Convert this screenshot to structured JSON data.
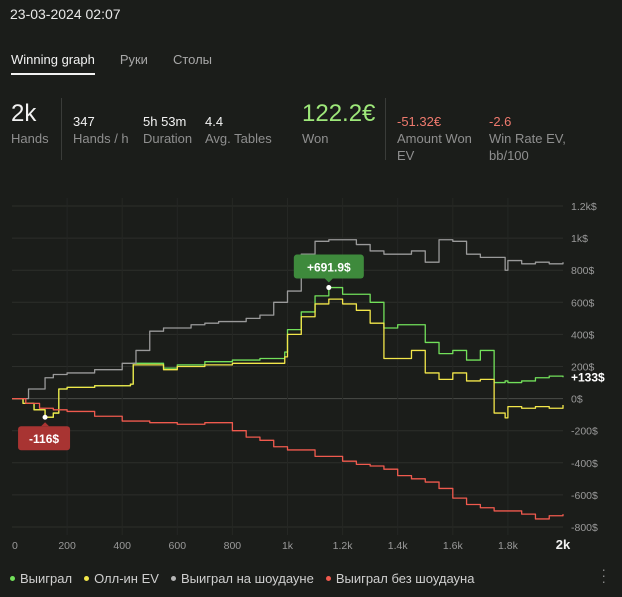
{
  "header": {
    "datetime": "23-03-2024 02:07"
  },
  "tabs": [
    {
      "label": "Winning graph",
      "active": true
    },
    {
      "label": "Руки",
      "active": false
    },
    {
      "label": "Столы",
      "active": false
    }
  ],
  "stats": {
    "hands": {
      "value": "2k",
      "label": "Hands"
    },
    "hands_per_hour": {
      "value": "347",
      "label": "Hands / h"
    },
    "duration": {
      "value": "5h 53m",
      "label": "Duration"
    },
    "avg_tables": {
      "value": "4.4",
      "label": "Avg. Tables"
    },
    "won": {
      "value": "122.2€",
      "label": "Won"
    },
    "amount_won_ev": {
      "value": "-51.32€",
      "label_line1": "Amount Won",
      "label_line2": "EV"
    },
    "win_rate_ev": {
      "value": "-2.6",
      "label_line1": "Win Rate EV,",
      "label_line2": "bb/100"
    }
  },
  "colors": {
    "won": "#72e05a",
    "allin_ev": "#f2e64a",
    "showdown": "#9a9a9a",
    "non_showdown": "#f05a4e",
    "positive_value": "#9ee87a",
    "negative_value": "#ef7a6e",
    "max_badge": "#3e8a3c",
    "min_badge": "#a83432"
  },
  "chart_data": {
    "type": "line",
    "x_ticks": [
      "0",
      "200",
      "400",
      "600",
      "800",
      "1k",
      "1.2k",
      "1.4k",
      "1.6k",
      "1.8k",
      "2k"
    ],
    "x_tick_values": [
      0,
      200,
      400,
      600,
      800,
      1000,
      1200,
      1400,
      1600,
      1800,
      2000
    ],
    "y_ticks": [
      "1.2k$",
      "1k$",
      "800$",
      "600$",
      "400$",
      "200$",
      "0$",
      "-200$",
      "-400$",
      "-600$",
      "-800$"
    ],
    "y_tick_values": [
      1200,
      1000,
      800,
      600,
      400,
      200,
      0,
      -200,
      -400,
      -600,
      -800
    ],
    "xlim": [
      0,
      2000
    ],
    "ylim": [
      -850,
      1250
    ],
    "grid": true,
    "legend_position": "bottom",
    "max_label": "+691.9$",
    "max_point": {
      "x": 1150,
      "y": 691.9
    },
    "min_label": "-116$",
    "min_point": {
      "x": 120,
      "y": -116
    },
    "end_label": "+133$",
    "series": [
      {
        "name": "Выиграл",
        "key": "won",
        "x": [
          0,
          40,
          80,
          120,
          150,
          170,
          200,
          300,
          430,
          440,
          550,
          600,
          700,
          800,
          900,
          990,
          1000,
          1050,
          1100,
          1150,
          1200,
          1250,
          1300,
          1350,
          1400,
          1450,
          1500,
          1550,
          1600,
          1650,
          1700,
          1750,
          1790,
          1800,
          1850,
          1900,
          1950,
          2000
        ],
        "y": [
          0,
          -30,
          -70,
          -116,
          -90,
          60,
          70,
          80,
          90,
          220,
          190,
          210,
          230,
          240,
          250,
          290,
          430,
          540,
          640,
          691.9,
          650,
          650,
          600,
          440,
          460,
          460,
          350,
          280,
          300,
          240,
          300,
          100,
          110,
          100,
          110,
          130,
          140,
          133
        ]
      },
      {
        "name": "Олл-ин EV",
        "key": "allin_ev",
        "x": [
          0,
          40,
          80,
          120,
          150,
          170,
          200,
          300,
          430,
          440,
          550,
          600,
          700,
          800,
          900,
          990,
          1000,
          1050,
          1100,
          1150,
          1200,
          1250,
          1300,
          1350,
          1400,
          1450,
          1500,
          1550,
          1600,
          1650,
          1700,
          1750,
          1790,
          1800,
          1850,
          1900,
          1950,
          2000
        ],
        "y": [
          0,
          -30,
          -70,
          -116,
          -90,
          60,
          70,
          80,
          90,
          210,
          180,
          200,
          210,
          220,
          220,
          260,
          400,
          510,
          590,
          620,
          590,
          550,
          470,
          250,
          250,
          300,
          160,
          120,
          160,
          110,
          120,
          -90,
          -120,
          -50,
          -60,
          -50,
          -60,
          -40
        ]
      },
      {
        "name": "Выиграл на шоудауне",
        "key": "showdown",
        "x": [
          0,
          60,
          120,
          150,
          200,
          300,
          400,
          450,
          500,
          550,
          600,
          650,
          700,
          750,
          800,
          850,
          900,
          950,
          1000,
          1050,
          1100,
          1150,
          1200,
          1250,
          1300,
          1350,
          1400,
          1450,
          1500,
          1550,
          1600,
          1650,
          1700,
          1750,
          1790,
          1800,
          1850,
          1900,
          1950,
          2000
        ],
        "y": [
          0,
          60,
          130,
          150,
          160,
          180,
          220,
          300,
          420,
          440,
          440,
          460,
          470,
          480,
          480,
          500,
          520,
          600,
          670,
          900,
          980,
          990,
          990,
          960,
          920,
          900,
          900,
          920,
          850,
          990,
          980,
          900,
          880,
          880,
          800,
          860,
          840,
          850,
          840,
          850
        ]
      },
      {
        "name": "Выиграл без шоудауна",
        "key": "non_showdown",
        "x": [
          0,
          50,
          100,
          150,
          200,
          300,
          400,
          500,
          600,
          700,
          800,
          850,
          900,
          950,
          1000,
          1100,
          1200,
          1250,
          1300,
          1350,
          1400,
          1450,
          1500,
          1550,
          1600,
          1650,
          1700,
          1750,
          1800,
          1850,
          1900,
          1950,
          2000
        ],
        "y": [
          0,
          -30,
          -60,
          -70,
          -80,
          -110,
          -140,
          -150,
          -160,
          -150,
          -200,
          -240,
          -260,
          -300,
          -320,
          -360,
          -390,
          -410,
          -420,
          -440,
          -480,
          -500,
          -520,
          -560,
          -620,
          -660,
          -680,
          -700,
          -700,
          -720,
          -750,
          -730,
          -720
        ]
      }
    ]
  },
  "legend_items": [
    {
      "label": "Выиграл",
      "key": "won"
    },
    {
      "label": "Олл-ин EV",
      "key": "allin_ev"
    },
    {
      "label": "Выиграл на шоудауне",
      "key": "showdown"
    },
    {
      "label": "Выиграл без шоудауна",
      "key": "non_showdown"
    }
  ]
}
